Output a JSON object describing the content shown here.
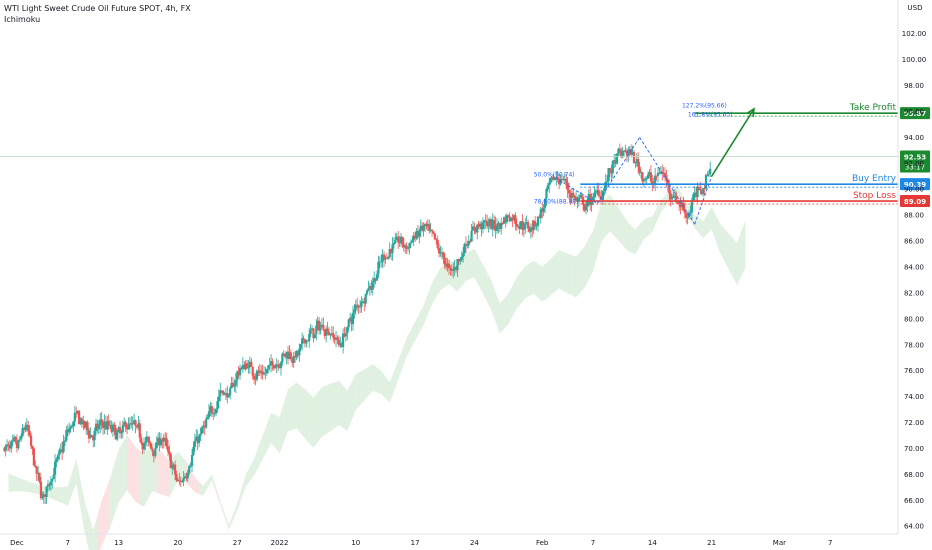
{
  "header": {
    "title": "WTI Light Sweet Crude Oil Future SPOT, 4h, FX",
    "indicator": "Ichimoku"
  },
  "colors": {
    "up": "#26a69a",
    "up_body": "#26a69a",
    "down": "#ef5350",
    "cloud_bull": "#c8e6c9",
    "cloud_bear": "#f8c8c8",
    "take_profit": "#1b8a2f",
    "buy_entry": "#1e88e5",
    "stop_loss": "#e53935",
    "pattern": "#2962ff",
    "current_price": "#1b8a2f"
  },
  "chart_data": {
    "type": "candlestick",
    "symbol": "WTI Light Sweet Crude Oil Future SPOT",
    "timeframe": "4h",
    "currency": "USD",
    "y_ticks": [
      64.0,
      66.0,
      68.0,
      70.0,
      72.0,
      74.0,
      76.0,
      78.0,
      80.0,
      82.0,
      84.0,
      86.0,
      88.0,
      90.0,
      92.0,
      94.0,
      96.0,
      98.0,
      100.0,
      102.0
    ],
    "y_tick_labels": [
      "64.00",
      "66.00",
      "68.00",
      "70.00",
      "72.00",
      "74.00",
      "76.00",
      "78.00",
      "80.00",
      "82.00",
      "84.00",
      "86.00",
      "88.00",
      "90.00",
      "92.00",
      "94.00",
      "96.00",
      "98.00",
      "100.00",
      "102.00"
    ],
    "ylim": [
      63.4,
      104.6
    ],
    "x_ticks": [
      "Dec",
      "7",
      "13",
      "20",
      "27",
      "2022",
      "10",
      "17",
      "24",
      "Feb",
      "7",
      "14",
      "21",
      "Mar",
      "7"
    ],
    "x_tick_days": [
      0,
      6,
      12,
      19,
      26,
      31,
      40,
      47,
      54,
      62,
      68,
      75,
      82,
      90,
      96
    ],
    "xlim_days": [
      -2,
      104
    ],
    "trend_path": [
      [
        0,
        70.0
      ],
      [
        1,
        72.0
      ],
      [
        2,
        68.5
      ],
      [
        3,
        66.0
      ],
      [
        4,
        68.0
      ],
      [
        5,
        69.5
      ],
      [
        6,
        71.5
      ],
      [
        7,
        72.5
      ],
      [
        8,
        71.5
      ],
      [
        9,
        71.0
      ],
      [
        10,
        72.0
      ],
      [
        11,
        71.5
      ],
      [
        12,
        71.0
      ],
      [
        13,
        72.0
      ],
      [
        14,
        71.5
      ],
      [
        15,
        70.5
      ],
      [
        16,
        70.0
      ],
      [
        17,
        71.0
      ],
      [
        18,
        69.0
      ],
      [
        19,
        67.0
      ],
      [
        20,
        68.5
      ],
      [
        21,
        70.5
      ],
      [
        22,
        71.5
      ],
      [
        23,
        73.0
      ],
      [
        24,
        74.5
      ],
      [
        25,
        74.0
      ],
      [
        26,
        76.0
      ],
      [
        27,
        76.5
      ],
      [
        28,
        76.0
      ],
      [
        29,
        75.5
      ],
      [
        30,
        76.5
      ],
      [
        31,
        77.0
      ],
      [
        32,
        77.5
      ],
      [
        33,
        77.0
      ],
      [
        34,
        78.5
      ],
      [
        35,
        79.0
      ],
      [
        36,
        79.5
      ],
      [
        37,
        79.0
      ],
      [
        38,
        78.0
      ],
      [
        39,
        79.5
      ],
      [
        40,
        81.0
      ],
      [
        41,
        82.0
      ],
      [
        42,
        83.0
      ],
      [
        43,
        84.5
      ],
      [
        44,
        85.5
      ],
      [
        45,
        86.0
      ],
      [
        46,
        85.5
      ],
      [
        47,
        86.5
      ],
      [
        48,
        87.0
      ],
      [
        49,
        86.0
      ],
      [
        50,
        85.0
      ],
      [
        51,
        83.5
      ],
      [
        52,
        84.5
      ],
      [
        53,
        86.0
      ],
      [
        54,
        87.0
      ],
      [
        55,
        87.5
      ],
      [
        56,
        87.0
      ],
      [
        57,
        87.5
      ],
      [
        58,
        88.0
      ],
      [
        59,
        87.5
      ],
      [
        60,
        87.0
      ],
      [
        61,
        87.5
      ],
      [
        62,
        88.5
      ],
      [
        63,
        90.5
      ],
      [
        64,
        91.0
      ],
      [
        65,
        90.0
      ],
      [
        66,
        89.0
      ],
      [
        67,
        88.5
      ],
      [
        68,
        89.5
      ],
      [
        69,
        90.0
      ],
      [
        70,
        91.5
      ],
      [
        71,
        92.5
      ],
      [
        72,
        93.0
      ],
      [
        73,
        92.0
      ],
      [
        74,
        91.0
      ],
      [
        75,
        90.5
      ],
      [
        76,
        91.5
      ],
      [
        77,
        90.0
      ],
      [
        78,
        89.0
      ],
      [
        79,
        88.0
      ],
      [
        80,
        89.5
      ],
      [
        81,
        90.5
      ],
      [
        82,
        92.5
      ]
    ],
    "levels": [
      {
        "name": "Take Profit",
        "value": 95.87,
        "label": "95.87",
        "style": "solid"
      },
      {
        "name": "Buy Entry",
        "value": 90.39,
        "label": "90.39",
        "style": "solid"
      },
      {
        "name": "Stop Loss",
        "value": 89.09,
        "label": "89.09",
        "style": "solid"
      }
    ],
    "current_price": {
      "value": 92.53,
      "label": "92.53",
      "countdown": "33:17"
    },
    "fib_labels": [
      "127.2%(95.66)",
      "161.8%(95.63)",
      "50.0%(90.74)",
      "78.60%(88.88)"
    ],
    "projection_arrow": {
      "from": [
        82,
        91.0
      ],
      "to": [
        87,
        96.2
      ]
    }
  },
  "labels": {
    "take_profit": "Take Profit",
    "buy_entry": "Buy Entry",
    "stop_loss": "Stop Loss"
  },
  "axis": {
    "currency_badge": "USD"
  }
}
